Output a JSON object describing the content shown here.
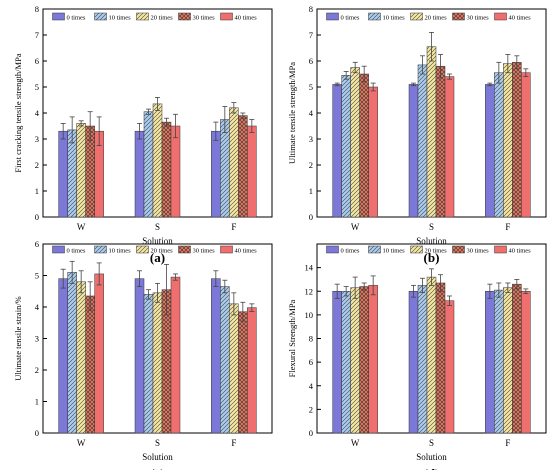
{
  "chart_data": [
    {
      "type": "bar",
      "panel_label": "(a)",
      "categories": [
        "W",
        "S",
        "F"
      ],
      "xlabel": "Solution",
      "ylabel": "First cracking tensile strength/MPa",
      "ylim": [
        0,
        8
      ],
      "yticks": [
        "0",
        "1",
        "2",
        "3",
        "4",
        "5",
        "6",
        "7",
        "8"
      ],
      "legend_position": "top",
      "series": [
        {
          "name": "0 times",
          "values": [
            3.3,
            3.3,
            3.3
          ],
          "errors": [
            0.3,
            0.3,
            0.35
          ]
        },
        {
          "name": "10 times",
          "values": [
            3.35,
            4.05,
            3.75
          ],
          "errors": [
            0.5,
            0.1,
            0.5
          ]
        },
        {
          "name": "20 times",
          "values": [
            3.6,
            4.35,
            4.2
          ],
          "errors": [
            0.1,
            0.25,
            0.2
          ]
        },
        {
          "name": "30 times",
          "values": [
            3.5,
            3.65,
            3.9
          ],
          "errors": [
            0.55,
            0.15,
            0.1
          ]
        },
        {
          "name": "40 times",
          "values": [
            3.3,
            3.5,
            3.5
          ],
          "errors": [
            0.55,
            0.45,
            0.25
          ]
        }
      ]
    },
    {
      "type": "bar",
      "panel_label": "(b)",
      "categories": [
        "W",
        "S",
        "F"
      ],
      "xlabel": "Solution",
      "ylabel": "Ultimate tensile strength/MPa",
      "ylim": [
        0,
        8
      ],
      "yticks": [
        "0",
        "1",
        "2",
        "3",
        "4",
        "5",
        "6",
        "7",
        "8"
      ],
      "legend_position": "top",
      "series": [
        {
          "name": "0 times",
          "values": [
            5.1,
            5.1,
            5.1
          ],
          "errors": [
            0.05,
            0.05,
            0.05
          ]
        },
        {
          "name": "10 times",
          "values": [
            5.45,
            5.85,
            5.55
          ],
          "errors": [
            0.15,
            0.35,
            0.4
          ]
        },
        {
          "name": "20 times",
          "values": [
            5.75,
            6.55,
            5.9
          ],
          "errors": [
            0.2,
            0.55,
            0.35
          ]
        },
        {
          "name": "30 times",
          "values": [
            5.5,
            5.8,
            5.95
          ],
          "errors": [
            0.3,
            0.45,
            0.25
          ]
        },
        {
          "name": "40 times",
          "values": [
            5.0,
            5.4,
            5.55
          ],
          "errors": [
            0.15,
            0.1,
            0.15
          ]
        }
      ]
    },
    {
      "type": "bar",
      "panel_label": "(c)",
      "categories": [
        "W",
        "S",
        "F"
      ],
      "xlabel": "Solution",
      "ylabel": "Ultimate tensile strain/%",
      "ylim": [
        0,
        6
      ],
      "yticks": [
        "0",
        "1",
        "2",
        "3",
        "4",
        "5",
        "6"
      ],
      "legend_position": "top",
      "series": [
        {
          "name": "0 times",
          "values": [
            4.9,
            4.9,
            4.9
          ],
          "errors": [
            0.3,
            0.25,
            0.25
          ]
        },
        {
          "name": "10 times",
          "values": [
            5.1,
            4.4,
            4.65
          ],
          "errors": [
            0.35,
            0.15,
            0.2
          ]
        },
        {
          "name": "20 times",
          "values": [
            4.8,
            4.45,
            4.1
          ],
          "errors": [
            0.35,
            0.3,
            0.35
          ]
        },
        {
          "name": "30 times",
          "values": [
            4.35,
            4.55,
            3.85
          ],
          "errors": [
            0.45,
            0.8,
            0.3
          ]
        },
        {
          "name": "40 times",
          "values": [
            5.05,
            4.95,
            3.98
          ],
          "errors": [
            0.35,
            0.1,
            0.12
          ]
        }
      ]
    },
    {
      "type": "bar",
      "panel_label": "(d)",
      "categories": [
        "W",
        "S",
        "F"
      ],
      "xlabel": "Solution",
      "ylabel": "Flexural Strength/MPa",
      "ylim": [
        0,
        16
      ],
      "yticks": [
        "0",
        "2",
        "4",
        "6",
        "8",
        "10",
        "12",
        "14"
      ],
      "legend_position": "top",
      "series": [
        {
          "name": "0 times",
          "values": [
            12.0,
            12.0,
            12.0
          ],
          "errors": [
            0.6,
            0.5,
            0.6
          ]
        },
        {
          "name": "10 times",
          "values": [
            12.0,
            12.5,
            12.1
          ],
          "errors": [
            0.4,
            0.6,
            0.6
          ]
        },
        {
          "name": "20 times",
          "values": [
            12.3,
            13.2,
            12.3
          ],
          "errors": [
            0.9,
            0.7,
            0.4
          ]
        },
        {
          "name": "30 times",
          "values": [
            12.4,
            12.7,
            12.6
          ],
          "errors": [
            0.3,
            0.7,
            0.4
          ]
        },
        {
          "name": "40 times",
          "values": [
            12.5,
            11.2,
            12.0
          ],
          "errors": [
            0.8,
            0.4,
            0.2
          ]
        }
      ]
    }
  ],
  "style": {
    "series_colors": [
      "#7b78d8",
      "#a9ccf0",
      "#f6e7a0",
      "#e8775f",
      "#ef6f6f"
    ],
    "series_patterns": [
      "solid",
      "diagonal-lines",
      "diagonal-lines",
      "crosshatch",
      "solid"
    ]
  }
}
